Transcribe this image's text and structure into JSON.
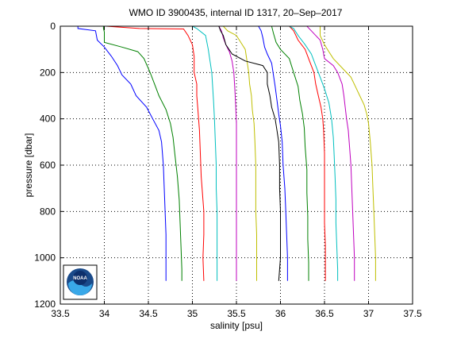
{
  "chart_data": {
    "type": "line",
    "title": "WMO ID 3900435, internal ID 1317, 20–Sep–2017",
    "xlabel": "salinity [psu]",
    "ylabel": "pressure [dbar]",
    "xlim": [
      33.5,
      37.5
    ],
    "ylim": [
      0,
      1200
    ],
    "y_reversed": true,
    "grid": true,
    "grid_style": "dotted",
    "xticks": [
      33.5,
      34,
      34.5,
      35,
      35.5,
      36,
      36.5,
      37,
      37.5
    ],
    "xtick_labels": [
      "33.5",
      "34",
      "34.5",
      "35",
      "35.5",
      "36",
      "36.5",
      "37",
      "37.5"
    ],
    "yticks": [
      0,
      200,
      400,
      600,
      800,
      1000,
      1200
    ],
    "ytick_labels": [
      "0",
      "200",
      "400",
      "600",
      "800",
      "1000",
      "1200"
    ],
    "logo": {
      "text": "NOAA",
      "colors": {
        "outer": "#1a4a8a",
        "inner": "#39a8e8",
        "circle": "#0d2f6b"
      }
    },
    "series": [
      {
        "color": "#0000ff",
        "points": [
          [
            33.7,
            0
          ],
          [
            33.7,
            10
          ],
          [
            33.9,
            20
          ],
          [
            33.92,
            60
          ],
          [
            34.0,
            90
          ],
          [
            34.08,
            130
          ],
          [
            34.15,
            170
          ],
          [
            34.2,
            210
          ],
          [
            34.3,
            250
          ],
          [
            34.36,
            300
          ],
          [
            34.48,
            350
          ],
          [
            34.55,
            400
          ],
          [
            34.62,
            450
          ],
          [
            34.65,
            500
          ],
          [
            34.67,
            600
          ],
          [
            34.68,
            700
          ],
          [
            34.69,
            800
          ],
          [
            34.7,
            900
          ],
          [
            34.7,
            1000
          ],
          [
            34.7,
            1100
          ]
        ]
      },
      {
        "color": "#008000",
        "points": [
          [
            33.99,
            0
          ],
          [
            33.99,
            10
          ],
          [
            34.0,
            25
          ],
          [
            34.0,
            70
          ],
          [
            34.2,
            90
          ],
          [
            34.38,
            110
          ],
          [
            34.45,
            140
          ],
          [
            34.52,
            200
          ],
          [
            34.58,
            260
          ],
          [
            34.62,
            300
          ],
          [
            34.7,
            360
          ],
          [
            34.75,
            420
          ],
          [
            34.78,
            480
          ],
          [
            34.8,
            550
          ],
          [
            34.83,
            650
          ],
          [
            34.85,
            750
          ],
          [
            34.86,
            850
          ],
          [
            34.87,
            950
          ],
          [
            34.88,
            1050
          ],
          [
            34.88,
            1100
          ]
        ]
      },
      {
        "color": "#ff0000",
        "points": [
          [
            34.02,
            0
          ],
          [
            34.4,
            10
          ],
          [
            34.9,
            12
          ],
          [
            34.95,
            40
          ],
          [
            35.0,
            80
          ],
          [
            35.02,
            130
          ],
          [
            35.02,
            200
          ],
          [
            35.05,
            250
          ],
          [
            35.05,
            300
          ],
          [
            35.06,
            350
          ],
          [
            35.07,
            400
          ],
          [
            35.08,
            450
          ],
          [
            35.09,
            550
          ],
          [
            35.1,
            650
          ],
          [
            35.12,
            750
          ],
          [
            35.13,
            800
          ],
          [
            35.13,
            900
          ],
          [
            35.12,
            1000
          ],
          [
            35.13,
            1100
          ]
        ]
      },
      {
        "color": "#00bfbf",
        "points": [
          [
            35.0,
            0
          ],
          [
            35.05,
            10
          ],
          [
            35.15,
            40
          ],
          [
            35.18,
            100
          ],
          [
            35.2,
            150
          ],
          [
            35.22,
            200
          ],
          [
            35.23,
            260
          ],
          [
            35.24,
            320
          ],
          [
            35.25,
            400
          ],
          [
            35.26,
            500
          ],
          [
            35.27,
            600
          ],
          [
            35.27,
            700
          ],
          [
            35.28,
            800
          ],
          [
            35.28,
            900
          ],
          [
            35.28,
            1000
          ],
          [
            35.28,
            1100
          ]
        ]
      },
      {
        "color": "#bf00bf",
        "points": [
          [
            35.3,
            0
          ],
          [
            35.33,
            20
          ],
          [
            35.35,
            50
          ],
          [
            35.38,
            80
          ],
          [
            35.42,
            110
          ],
          [
            35.45,
            150
          ],
          [
            35.47,
            200
          ],
          [
            35.48,
            260
          ],
          [
            35.49,
            330
          ],
          [
            35.5,
            420
          ],
          [
            35.5,
            520
          ],
          [
            35.5,
            620
          ],
          [
            35.5,
            720
          ],
          [
            35.5,
            820
          ],
          [
            35.5,
            920
          ],
          [
            35.5,
            1020
          ],
          [
            35.5,
            1100
          ]
        ]
      },
      {
        "color": "#bfbf00",
        "points": [
          [
            35.35,
            0
          ],
          [
            35.4,
            20
          ],
          [
            35.5,
            40
          ],
          [
            35.55,
            70
          ],
          [
            35.6,
            100
          ],
          [
            35.62,
            150
          ],
          [
            35.64,
            200
          ],
          [
            35.65,
            250
          ],
          [
            35.67,
            300
          ],
          [
            35.68,
            360
          ],
          [
            35.7,
            420
          ],
          [
            35.71,
            500
          ],
          [
            35.72,
            600
          ],
          [
            35.72,
            700
          ],
          [
            35.72,
            800
          ],
          [
            35.73,
            900
          ],
          [
            35.73,
            1000
          ],
          [
            35.73,
            1100
          ]
        ]
      },
      {
        "color": "#000000",
        "points": [
          [
            35.3,
            0
          ],
          [
            35.32,
            20
          ],
          [
            35.35,
            40
          ],
          [
            35.38,
            80
          ],
          [
            35.45,
            120
          ],
          [
            35.6,
            150
          ],
          [
            35.8,
            170
          ],
          [
            35.85,
            200
          ],
          [
            35.85,
            250
          ],
          [
            35.88,
            300
          ],
          [
            35.9,
            350
          ],
          [
            35.94,
            400
          ],
          [
            35.96,
            450
          ],
          [
            35.98,
            500
          ],
          [
            35.99,
            600
          ],
          [
            35.99,
            700
          ],
          [
            36.0,
            800
          ],
          [
            36.0,
            900
          ],
          [
            36.0,
            1000
          ],
          [
            35.98,
            1100
          ]
        ]
      },
      {
        "color": "#0000ff",
        "points": [
          [
            35.75,
            0
          ],
          [
            35.78,
            20
          ],
          [
            35.8,
            50
          ],
          [
            35.82,
            90
          ],
          [
            35.85,
            120
          ],
          [
            35.9,
            160
          ],
          [
            35.92,
            210
          ],
          [
            35.94,
            260
          ],
          [
            35.96,
            320
          ],
          [
            35.98,
            380
          ],
          [
            36.0,
            430
          ],
          [
            36.02,
            500
          ],
          [
            36.03,
            600
          ],
          [
            36.05,
            700
          ],
          [
            36.06,
            800
          ],
          [
            36.07,
            900
          ],
          [
            36.08,
            1000
          ],
          [
            36.08,
            1100
          ]
        ]
      },
      {
        "color": "#008000",
        "points": [
          [
            35.9,
            0
          ],
          [
            35.92,
            30
          ],
          [
            35.95,
            70
          ],
          [
            36.0,
            100
          ],
          [
            36.1,
            140
          ],
          [
            36.15,
            200
          ],
          [
            36.2,
            260
          ],
          [
            36.22,
            320
          ],
          [
            36.25,
            380
          ],
          [
            36.27,
            440
          ],
          [
            36.28,
            520
          ],
          [
            36.3,
            620
          ],
          [
            36.3,
            720
          ],
          [
            36.31,
            820
          ],
          [
            36.31,
            920
          ],
          [
            36.32,
            1020
          ],
          [
            36.32,
            1100
          ]
        ]
      },
      {
        "color": "#ff0000",
        "points": [
          [
            36.1,
            0
          ],
          [
            36.15,
            20
          ],
          [
            36.2,
            60
          ],
          [
            36.28,
            100
          ],
          [
            36.33,
            150
          ],
          [
            36.38,
            200
          ],
          [
            36.4,
            250
          ],
          [
            36.43,
            300
          ],
          [
            36.46,
            350
          ],
          [
            36.48,
            400
          ],
          [
            36.49,
            450
          ],
          [
            36.5,
            550
          ],
          [
            36.5,
            650
          ],
          [
            36.5,
            750
          ],
          [
            36.5,
            850
          ],
          [
            36.51,
            950
          ],
          [
            36.51,
            1050
          ],
          [
            36.51,
            1100
          ]
        ]
      },
      {
        "color": "#00bfbf",
        "points": [
          [
            36.1,
            0
          ],
          [
            36.15,
            10
          ],
          [
            36.2,
            40
          ],
          [
            36.28,
            80
          ],
          [
            36.35,
            120
          ],
          [
            36.4,
            170
          ],
          [
            36.45,
            220
          ],
          [
            36.5,
            270
          ],
          [
            36.55,
            330
          ],
          [
            36.58,
            400
          ],
          [
            36.6,
            480
          ],
          [
            36.61,
            560
          ],
          [
            36.62,
            650
          ],
          [
            36.63,
            750
          ],
          [
            36.63,
            850
          ],
          [
            36.64,
            950
          ],
          [
            36.65,
            1050
          ],
          [
            36.65,
            1100
          ]
        ]
      },
      {
        "color": "#bf00bf",
        "points": [
          [
            36.3,
            0
          ],
          [
            36.35,
            20
          ],
          [
            36.4,
            40
          ],
          [
            36.45,
            60
          ],
          [
            36.48,
            100
          ],
          [
            36.5,
            140
          ],
          [
            36.6,
            170
          ],
          [
            36.65,
            200
          ],
          [
            36.7,
            250
          ],
          [
            36.72,
            300
          ],
          [
            36.75,
            400
          ],
          [
            36.77,
            450
          ],
          [
            36.78,
            500
          ],
          [
            36.8,
            600
          ],
          [
            36.81,
            700
          ],
          [
            36.82,
            800
          ],
          [
            36.83,
            900
          ],
          [
            36.84,
            1000
          ],
          [
            36.84,
            1100
          ]
        ]
      },
      {
        "color": "#bfbf00",
        "points": [
          [
            36.45,
            0
          ],
          [
            36.45,
            40
          ],
          [
            36.5,
            80
          ],
          [
            36.55,
            110
          ],
          [
            36.6,
            140
          ],
          [
            36.7,
            180
          ],
          [
            36.8,
            220
          ],
          [
            36.85,
            260
          ],
          [
            36.9,
            300
          ],
          [
            36.95,
            340
          ],
          [
            36.98,
            380
          ],
          [
            37.0,
            420
          ],
          [
            37.02,
            500
          ],
          [
            37.04,
            600
          ],
          [
            37.05,
            700
          ],
          [
            37.06,
            800
          ],
          [
            37.07,
            900
          ],
          [
            37.08,
            1000
          ],
          [
            37.08,
            1100
          ]
        ]
      }
    ]
  }
}
